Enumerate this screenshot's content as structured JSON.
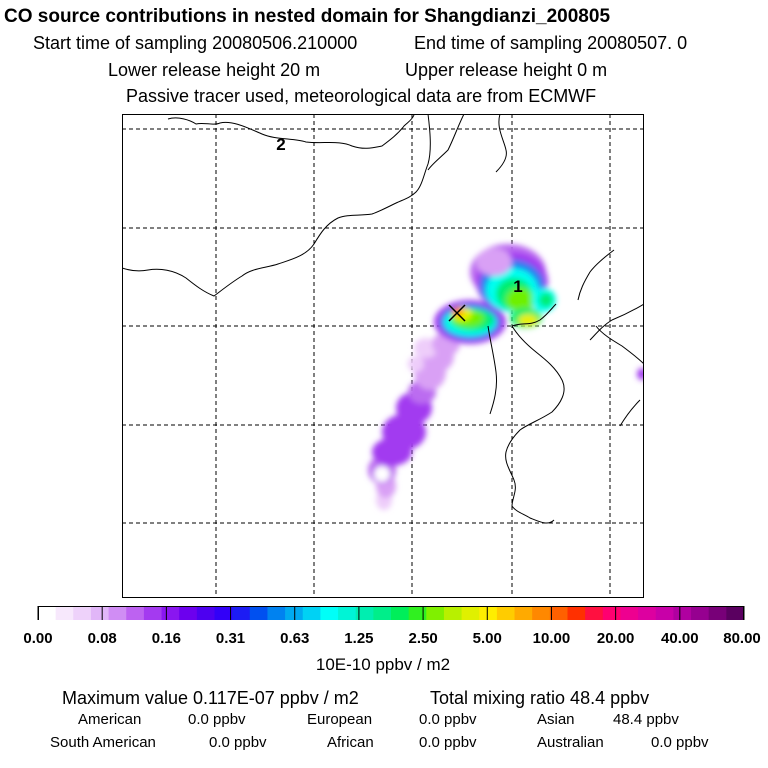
{
  "header": {
    "title": "CO  source contributions in nested domain for Shangdianzi_200805",
    "start_label": "Start time of sampling 20080506.210000",
    "end_label": "End time of sampling 20080507.     0",
    "lower_label": "Lower release height   20 m",
    "upper_label": "Upper release height    0 m",
    "note": "Passive tracer used, meteorological data are from ECMWF"
  },
  "map": {
    "markers": [
      {
        "label": "2"
      },
      {
        "label": "1"
      }
    ],
    "plume_colors": [
      "#f8eafc",
      "#eecdfa",
      "#d9a0f5",
      "#bb6cf0",
      "#a23af0",
      "#1d7ff0",
      "#00fff0",
      "#00ee70",
      "#6ef000",
      "#e8f000",
      "#ffb000",
      "#ff2000"
    ]
  },
  "colorbar": {
    "colors": [
      "#ffffff",
      "#f7e8fc",
      "#eed2fa",
      "#e1b6f8",
      "#d08df4",
      "#bd62f1",
      "#a43af0",
      "#8a16f0",
      "#6c00ee",
      "#4d00f0",
      "#3200f8",
      "#1c1cf4",
      "#0050f0",
      "#0082f0",
      "#00aaf0",
      "#00d2f4",
      "#00fff8",
      "#00f4d6",
      "#00eeb0",
      "#00ee8a",
      "#00ee5a",
      "#30f020",
      "#80f000",
      "#b8f000",
      "#e0f000",
      "#ffee00",
      "#ffcc00",
      "#ffaa00",
      "#ff8800",
      "#ff6000",
      "#ff3000",
      "#ff1040",
      "#ff0070",
      "#ee0090",
      "#dd00a0",
      "#c800a8",
      "#b000a0",
      "#960090",
      "#780078",
      "#5a0060"
    ],
    "tick_labels": [
      "0.00",
      "0.08",
      "0.16",
      "0.31",
      "0.63",
      "1.25",
      "2.50",
      "5.00",
      "10.00",
      "20.00",
      "40.00",
      "80.00"
    ],
    "unit": "10E-10 ppbv / m2"
  },
  "stats": {
    "max_value": "Maximum value  0.117E-07 ppbv / m2",
    "total_mixing": "Total mixing ratio      48.4 ppbv",
    "regions": [
      {
        "name": "American",
        "value": "0.0 ppbv"
      },
      {
        "name": "European",
        "value": "0.0 ppbv"
      },
      {
        "name": "Asian",
        "value": "48.4 ppbv"
      },
      {
        "name": "South American",
        "value": "0.0 ppbv"
      },
      {
        "name": "African",
        "value": "0.0 ppbv"
      },
      {
        "name": "Australian",
        "value": "0.0 ppbv"
      }
    ]
  }
}
